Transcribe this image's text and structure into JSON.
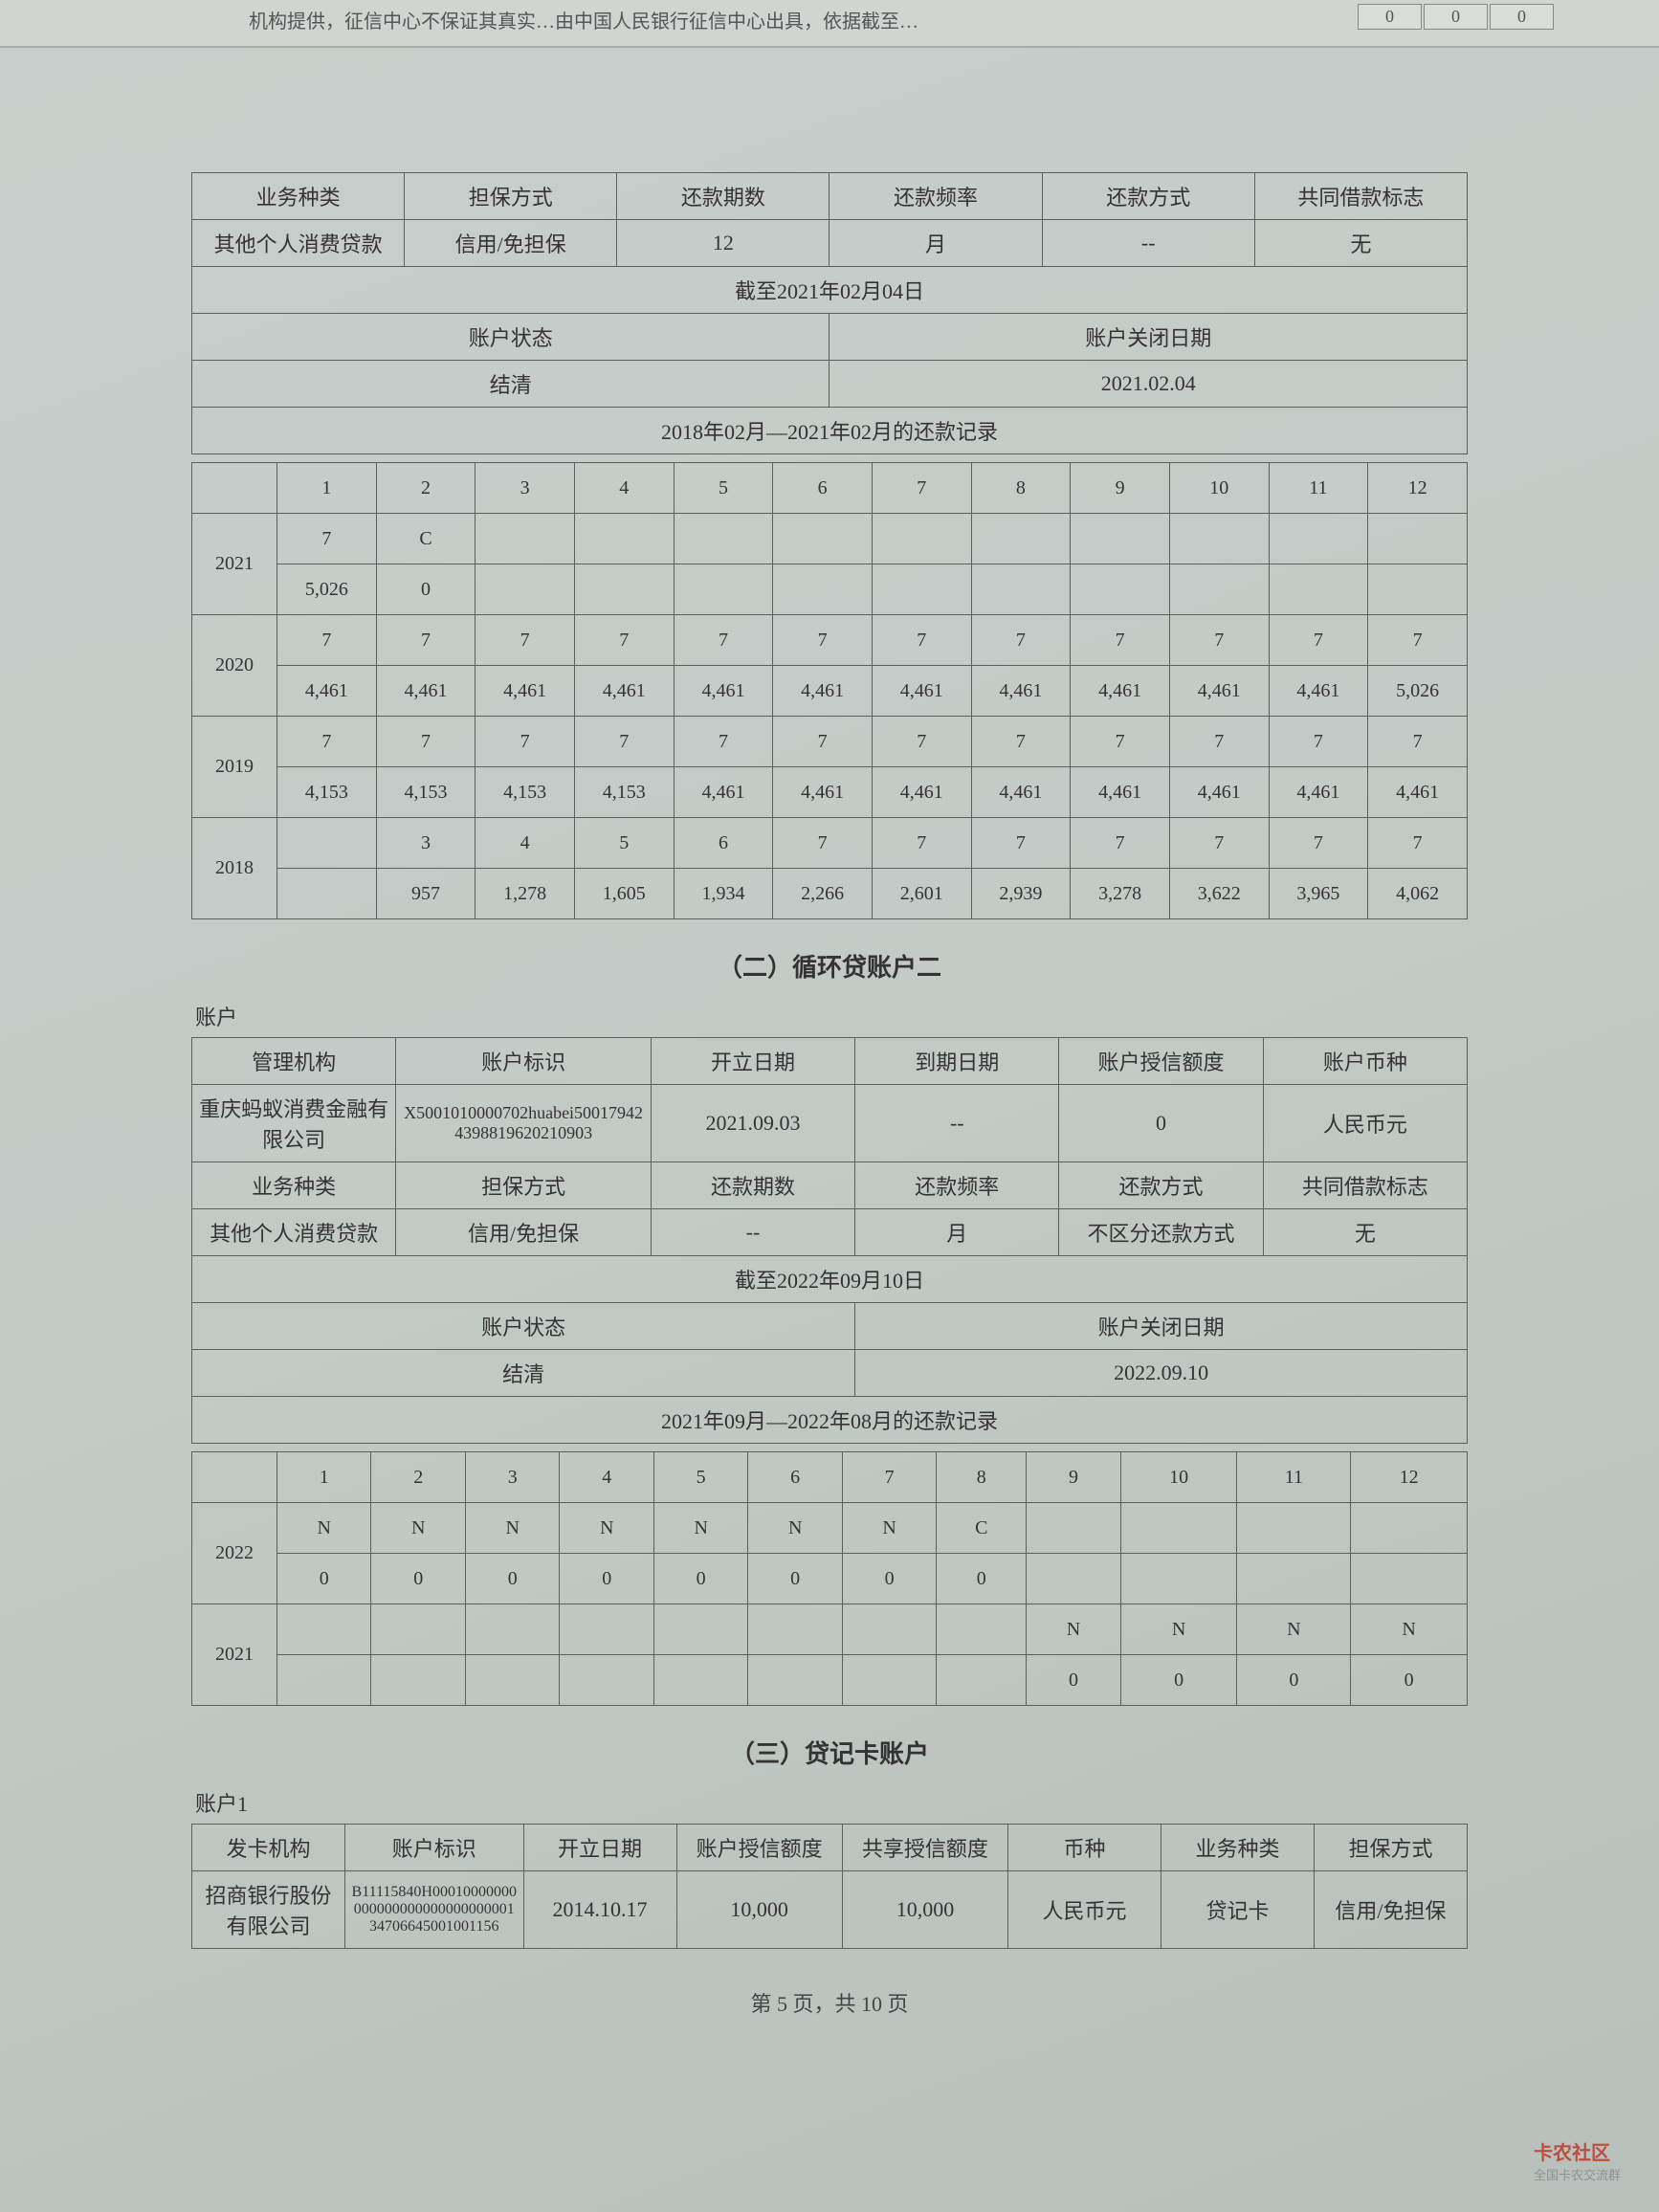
{
  "topFragment": "机构提供，征信中心不保证其真实…由中国人民银行征信中心出具，依据截至…",
  "topZeros": [
    "0",
    "0",
    "0"
  ],
  "table1": {
    "headers": [
      "业务种类",
      "担保方式",
      "还款期数",
      "还款频率",
      "还款方式",
      "共同借款标志"
    ],
    "row": [
      "其他个人消费贷款",
      "信用/免担保",
      "12",
      "月",
      "--",
      "无"
    ],
    "asOf": "截至2021年02月04日",
    "statusLabel": "账户状态",
    "statusValue": "结清",
    "closeLabel": "账户关闭日期",
    "closeValue": "2021.02.04",
    "recordTitle": "2018年02月—2021年02月的还款记录",
    "months": [
      "1",
      "2",
      "3",
      "4",
      "5",
      "6",
      "7",
      "8",
      "9",
      "10",
      "11",
      "12"
    ],
    "rows": [
      {
        "year": "2021",
        "l1": [
          "7",
          "C",
          "",
          "",
          "",
          "",
          "",
          "",
          "",
          "",
          "",
          ""
        ],
        "l2": [
          "5,026",
          "0",
          "",
          "",
          "",
          "",
          "",
          "",
          "",
          "",
          "",
          ""
        ]
      },
      {
        "year": "2020",
        "l1": [
          "7",
          "7",
          "7",
          "7",
          "7",
          "7",
          "7",
          "7",
          "7",
          "7",
          "7",
          "7"
        ],
        "l2": [
          "4,461",
          "4,461",
          "4,461",
          "4,461",
          "4,461",
          "4,461",
          "4,461",
          "4,461",
          "4,461",
          "4,461",
          "4,461",
          "5,026"
        ]
      },
      {
        "year": "2019",
        "l1": [
          "7",
          "7",
          "7",
          "7",
          "7",
          "7",
          "7",
          "7",
          "7",
          "7",
          "7",
          "7"
        ],
        "l2": [
          "4,153",
          "4,153",
          "4,153",
          "4,153",
          "4,461",
          "4,461",
          "4,461",
          "4,461",
          "4,461",
          "4,461",
          "4,461",
          "4,461"
        ]
      },
      {
        "year": "2018",
        "l1": [
          "",
          "3",
          "4",
          "5",
          "6",
          "7",
          "7",
          "7",
          "7",
          "7",
          "7",
          "7"
        ],
        "l2": [
          "",
          "957",
          "1,278",
          "1,605",
          "1,934",
          "2,266",
          "2,601",
          "2,939",
          "3,278",
          "3,622",
          "3,965",
          "4,062"
        ]
      }
    ]
  },
  "section2Title": "（二）循环贷账户二",
  "accountLabel": "账户",
  "table2a": {
    "headers": [
      "管理机构",
      "账户标识",
      "开立日期",
      "到期日期",
      "账户授信额度",
      "账户币种"
    ],
    "row": [
      "重庆蚂蚁消费金融有限公司",
      "X5001010000702huabei500179424398819620210903",
      "2021.09.03",
      "--",
      "0",
      "人民币元"
    ]
  },
  "table2b": {
    "headers": [
      "业务种类",
      "担保方式",
      "还款期数",
      "还款频率",
      "还款方式",
      "共同借款标志"
    ],
    "row": [
      "其他个人消费贷款",
      "信用/免担保",
      "--",
      "月",
      "不区分还款方式",
      "无"
    ]
  },
  "table2status": {
    "asOf": "截至2022年09月10日",
    "statusLabel": "账户状态",
    "statusValue": "结清",
    "closeLabel": "账户关闭日期",
    "closeValue": "2022.09.10",
    "recordTitle": "2021年09月—2022年08月的还款记录",
    "months": [
      "1",
      "2",
      "3",
      "4",
      "5",
      "6",
      "7",
      "8",
      "9",
      "10",
      "11",
      "12"
    ],
    "rows": [
      {
        "year": "2022",
        "l1": [
          "N",
          "N",
          "N",
          "N",
          "N",
          "N",
          "N",
          "C",
          "",
          "",
          "",
          ""
        ],
        "l2": [
          "0",
          "0",
          "0",
          "0",
          "0",
          "0",
          "0",
          "0",
          "",
          "",
          "",
          ""
        ]
      },
      {
        "year": "2021",
        "l1": [
          "",
          "",
          "",
          "",
          "",
          "",
          "",
          "",
          "N",
          "N",
          "N",
          "N"
        ],
        "l2": [
          "",
          "",
          "",
          "",
          "",
          "",
          "",
          "",
          "0",
          "0",
          "0",
          "0"
        ]
      }
    ]
  },
  "section3Title": "（三）贷记卡账户",
  "account1Label": "账户1",
  "table3": {
    "headers": [
      "发卡机构",
      "账户标识",
      "开立日期",
      "账户授信额度",
      "共享授信额度",
      "币种",
      "业务种类",
      "担保方式"
    ],
    "row": [
      "招商银行股份有限公司",
      "B11115840H0001000000000000000000000000000134706645001001156",
      "2014.10.17",
      "10,000",
      "10,000",
      "人民币元",
      "贷记卡",
      "信用/免担保"
    ]
  },
  "footer": "第 5 页，共 10 页",
  "logo": "卡农社区",
  "logoSub": "全国卡农交流群"
}
